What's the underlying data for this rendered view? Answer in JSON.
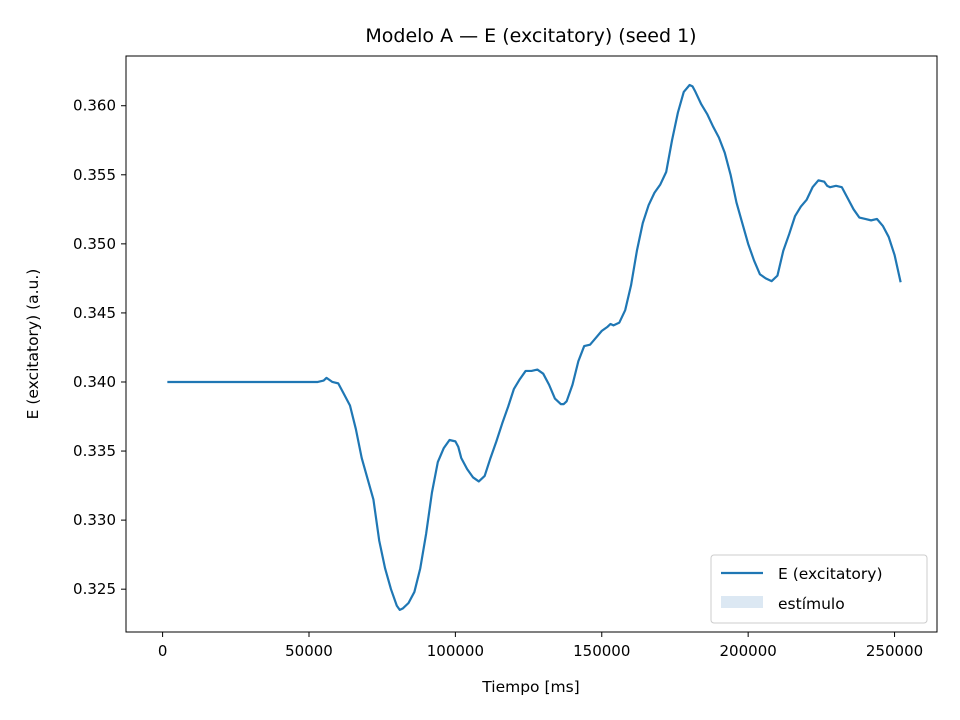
{
  "chart_data": {
    "type": "line",
    "title": "Modelo A — E (excitatory) (seed 1)",
    "xlabel": "Tiempo [ms]",
    "ylabel": "E (excitatory) (a.u.)",
    "xlim": [
      -12500,
      264500
    ],
    "ylim": [
      0.3219,
      0.3636
    ],
    "xticks": [
      0,
      50000,
      100000,
      150000,
      200000,
      250000
    ],
    "xtick_labels": [
      "0",
      "50000",
      "100000",
      "150000",
      "200000",
      "250000"
    ],
    "yticks": [
      0.325,
      0.33,
      0.335,
      0.34,
      0.345,
      0.35,
      0.355,
      0.36
    ],
    "ytick_labels": [
      "0.325",
      "0.330",
      "0.335",
      "0.340",
      "0.345",
      "0.350",
      "0.355",
      "0.360"
    ],
    "grid": false,
    "legend": {
      "placement": "lower-right",
      "entries": [
        {
          "label": "E (excitatory)",
          "kind": "line",
          "color": "#1f77b4"
        },
        {
          "label": "estímulo",
          "kind": "patch",
          "color": "#dce8f3"
        }
      ]
    },
    "series": [
      {
        "name": "E (excitatory)",
        "color": "#1f77b4",
        "x": [
          2000,
          10000,
          20000,
          30000,
          40000,
          50000,
          53000,
          55000,
          56000,
          58000,
          60000,
          62000,
          64000,
          66000,
          68000,
          70000,
          72000,
          74000,
          76000,
          78000,
          80000,
          81000,
          82000,
          84000,
          86000,
          88000,
          90000,
          92000,
          94000,
          96000,
          98000,
          100000,
          101000,
          102000,
          104000,
          106000,
          108000,
          110000,
          112000,
          114000,
          116000,
          118000,
          120000,
          122000,
          124000,
          126000,
          128000,
          130000,
          132000,
          134000,
          136000,
          137000,
          138000,
          140000,
          142000,
          144000,
          146000,
          148000,
          150000,
          152000,
          153000,
          154000,
          156000,
          158000,
          160000,
          162000,
          164000,
          166000,
          168000,
          170000,
          172000,
          174000,
          176000,
          178000,
          180000,
          181000,
          182000,
          184000,
          186000,
          188000,
          190000,
          192000,
          194000,
          196000,
          198000,
          200000,
          202000,
          204000,
          206000,
          208000,
          210000,
          212000,
          214000,
          216000,
          218000,
          220000,
          222000,
          224000,
          226000,
          227000,
          228000,
          230000,
          232000,
          234000,
          236000,
          238000,
          240000,
          242000,
          244000,
          246000,
          248000,
          250000,
          252000
        ],
        "y": [
          0.34,
          0.34,
          0.34,
          0.34,
          0.34,
          0.34,
          0.34,
          0.3401,
          0.3403,
          0.34,
          0.3399,
          0.3391,
          0.3383,
          0.3366,
          0.3345,
          0.333,
          0.3315,
          0.3285,
          0.3265,
          0.325,
          0.3238,
          0.3235,
          0.3236,
          0.324,
          0.3248,
          0.3265,
          0.329,
          0.332,
          0.3342,
          0.3352,
          0.3358,
          0.3357,
          0.3353,
          0.3345,
          0.3337,
          0.3331,
          0.3328,
          0.3332,
          0.3345,
          0.3357,
          0.337,
          0.3382,
          0.3395,
          0.3402,
          0.3408,
          0.3408,
          0.3409,
          0.3406,
          0.3398,
          0.3388,
          0.3384,
          0.3384,
          0.3386,
          0.3398,
          0.3415,
          0.3426,
          0.3427,
          0.3432,
          0.3437,
          0.344,
          0.3442,
          0.3441,
          0.3443,
          0.3452,
          0.347,
          0.3495,
          0.3515,
          0.3528,
          0.3537,
          0.3543,
          0.3552,
          0.3575,
          0.3595,
          0.361,
          0.3615,
          0.3614,
          0.361,
          0.3601,
          0.3594,
          0.3585,
          0.3577,
          0.3566,
          0.355,
          0.353,
          0.3515,
          0.35,
          0.3488,
          0.3478,
          0.3475,
          0.3473,
          0.3477,
          0.3495,
          0.3507,
          0.352,
          0.3527,
          0.3532,
          0.3541,
          0.3546,
          0.3545,
          0.3542,
          0.3541,
          0.3542,
          0.3541,
          0.3533,
          0.3525,
          0.3519,
          0.3518,
          0.3517,
          0.3518,
          0.3513,
          0.3505,
          0.3492,
          0.3473
        ]
      }
    ]
  }
}
